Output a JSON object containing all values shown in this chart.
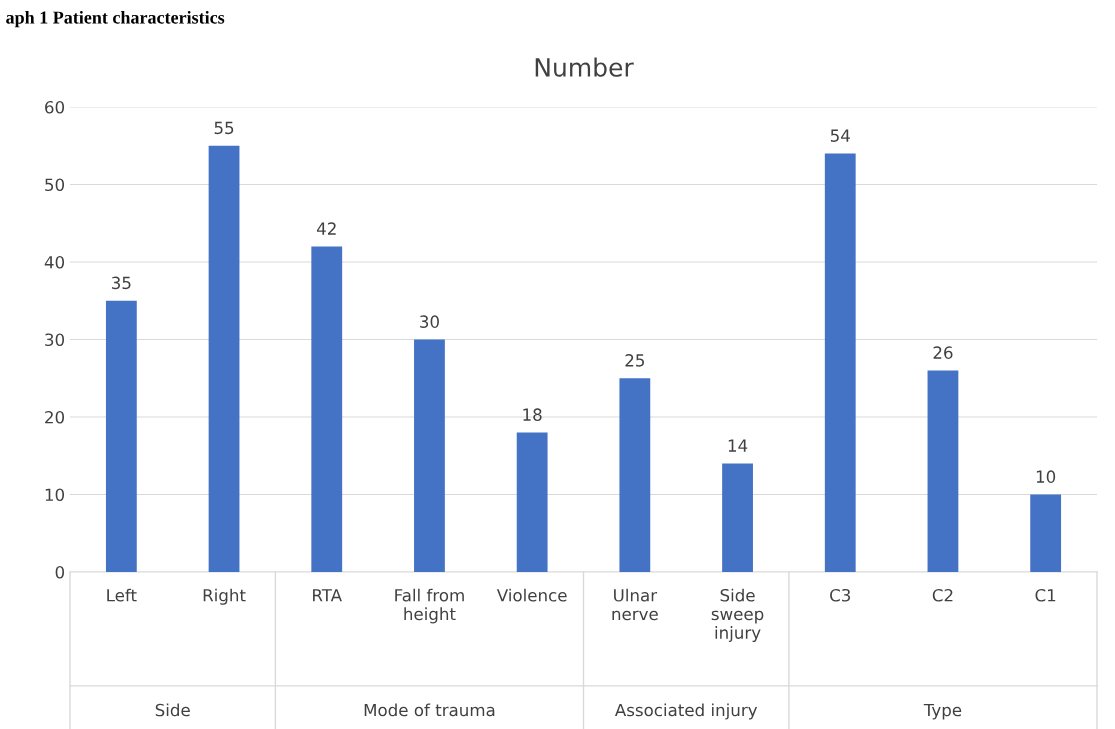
{
  "chart_data": {
    "type": "bar",
    "title": "Number",
    "categories": [
      "Left",
      "Right",
      "RTA",
      "Fall from\nheight",
      "Violence",
      "Ulnar\nnerve",
      "Side\nsweep\ninjury",
      "C3",
      "C2",
      "C1"
    ],
    "values": [
      35,
      55,
      42,
      30,
      18,
      25,
      14,
      54,
      26,
      10
    ],
    "color": "#4472c4",
    "ylim": [
      0,
      60
    ],
    "yticks": [
      0,
      10,
      20,
      30,
      40,
      50,
      60
    ],
    "grid": "y",
    "data_labels": true,
    "annotations": [
      "aph 1 Patient characteristics",
      "Side",
      "Mode of trauma",
      "Associated injury",
      "Type"
    ]
  }
}
